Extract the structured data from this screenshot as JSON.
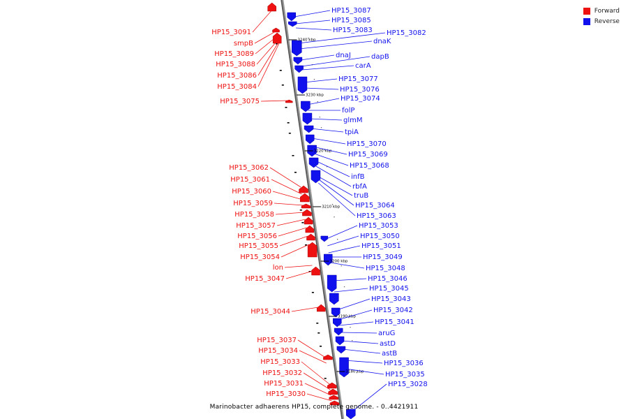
{
  "caption": "Marinobacter adhaerens HP15, complete genome. - 0..4421911",
  "legend": [
    {
      "label": "Forward",
      "color": "#ee1111"
    },
    {
      "label": "Reverse",
      "color": "#1111ee"
    }
  ],
  "scale_ticks": [
    "3240 kbp",
    "3230 kbp",
    "3220 kbp",
    "3210 kbp",
    "3200 kbp",
    "3190 kbp",
    "3180 kbp"
  ],
  "forward_labels": [
    "HP15_3091",
    "smpB",
    "HP15_3089",
    "HP15_3088",
    "HP15_3086",
    "HP15_3084",
    "HP15_3075",
    "HP15_3062",
    "HP15_3061",
    "HP15_3060",
    "HP15_3059",
    "HP15_3058",
    "HP15_3057",
    "HP15_3056",
    "HP15_3055",
    "HP15_3054",
    "lon",
    "HP15_3047",
    "HP15_3044",
    "HP15_3037",
    "HP15_3034",
    "HP15_3033",
    "HP15_3032",
    "HP15_3031",
    "HP15_3030"
  ],
  "reverse_labels": [
    "HP15_3087",
    "HP15_3085",
    "HP15_3083",
    "HP15_3082",
    "dnaK",
    "dnaJ",
    "dapB",
    "carA",
    "HP15_3077",
    "HP15_3076",
    "HP15_3074",
    "folP",
    "glmM",
    "tpiA",
    "HP15_3070",
    "HP15_3069",
    "HP15_3068",
    "infB",
    "rbfA",
    "truB",
    "HP15_3064",
    "HP15_3063",
    "HP15_3053",
    "HP15_3050",
    "HP15_3051",
    "HP15_3049",
    "HP15_3048",
    "HP15_3046",
    "HP15_3045",
    "HP15_3043",
    "HP15_3042",
    "HP15_3041",
    "aruG",
    "astD",
    "astB",
    "HP15_3036",
    "HP15_3035",
    "HP15_3028"
  ]
}
